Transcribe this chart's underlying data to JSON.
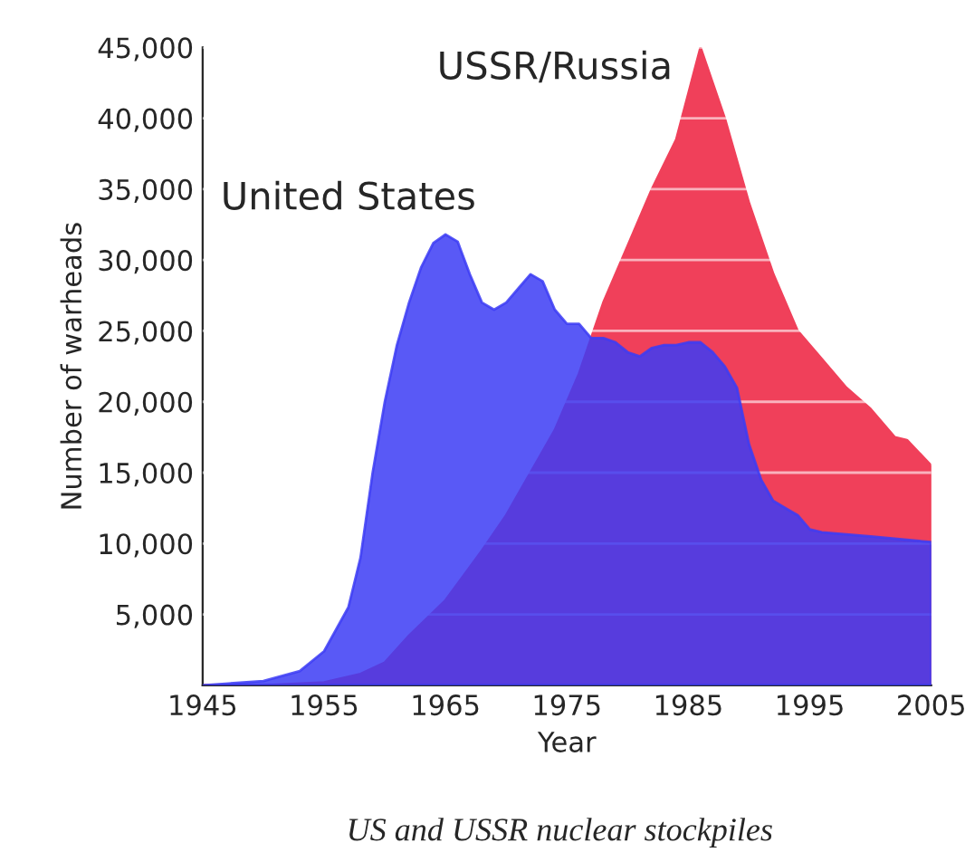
{
  "chart_data": {
    "type": "area",
    "xlabel": "Year",
    "ylabel": "Number of warheads",
    "annotations": [
      "US and USSR nuclear stockpiles"
    ],
    "series": [
      {
        "name": "USSR/Russia",
        "color": "#f0405a",
        "x": [
          1945,
          1950,
          1955,
          1958,
          1960,
          1962,
          1965,
          1968,
          1970,
          1972,
          1974,
          1976,
          1978,
          1980,
          1982,
          1984,
          1986,
          1988,
          1990,
          1992,
          1994,
          1996,
          1998,
          2000,
          2002,
          2003,
          2005
        ],
        "values": [
          0,
          0,
          200,
          800,
          1600,
          3500,
          6000,
          9500,
          12000,
          15000,
          18000,
          22000,
          27000,
          31000,
          35000,
          38500,
          45000,
          40000,
          34000,
          29000,
          25000,
          23000,
          21000,
          19500,
          17500,
          17300,
          15500
        ]
      },
      {
        "name": "United States",
        "color": "#3c3cf5",
        "x": [
          1945,
          1950,
          1953,
          1955,
          1957,
          1958,
          1959,
          1960,
          1961,
          1962,
          1963,
          1964,
          1965,
          1966,
          1967,
          1968,
          1969,
          1970,
          1971,
          1972,
          1973,
          1974,
          1975,
          1976,
          1977,
          1978,
          1979,
          1980,
          1981,
          1982,
          1983,
          1984,
          1985,
          1986,
          1987,
          1988,
          1989,
          1990,
          1991,
          1992,
          1993,
          1994,
          1995,
          1996,
          2000,
          2005
        ],
        "values": [
          0,
          300,
          1000,
          2400,
          5500,
          9000,
          15000,
          20000,
          24000,
          27000,
          29500,
          31200,
          31800,
          31300,
          29000,
          27000,
          26500,
          27000,
          28000,
          29000,
          28500,
          26500,
          25500,
          25500,
          24500,
          24500,
          24200,
          23500,
          23200,
          23800,
          24000,
          24000,
          24200,
          24200,
          23500,
          22500,
          21000,
          17000,
          14500,
          13000,
          12500,
          12000,
          11000,
          10800,
          10500,
          10100
        ]
      }
    ],
    "xlim": [
      1945,
      2005
    ],
    "xticks": [
      1945,
      1955,
      1965,
      1975,
      1985,
      1995,
      2005
    ],
    "ylim": [
      0,
      45000
    ],
    "yticks": [
      {
        "value": 5000,
        "label": "5,000"
      },
      {
        "value": 10000,
        "label": "10,000"
      },
      {
        "value": 15000,
        "label": "15,000"
      },
      {
        "value": 20000,
        "label": "20,000"
      },
      {
        "value": 25000,
        "label": "25,000"
      },
      {
        "value": 30000,
        "label": "30,000"
      },
      {
        "value": 35000,
        "label": "35,000"
      },
      {
        "value": 40000,
        "label": "40,000"
      },
      {
        "value": 45000,
        "label": "45,000"
      }
    ],
    "grid": "y",
    "legend": false
  }
}
